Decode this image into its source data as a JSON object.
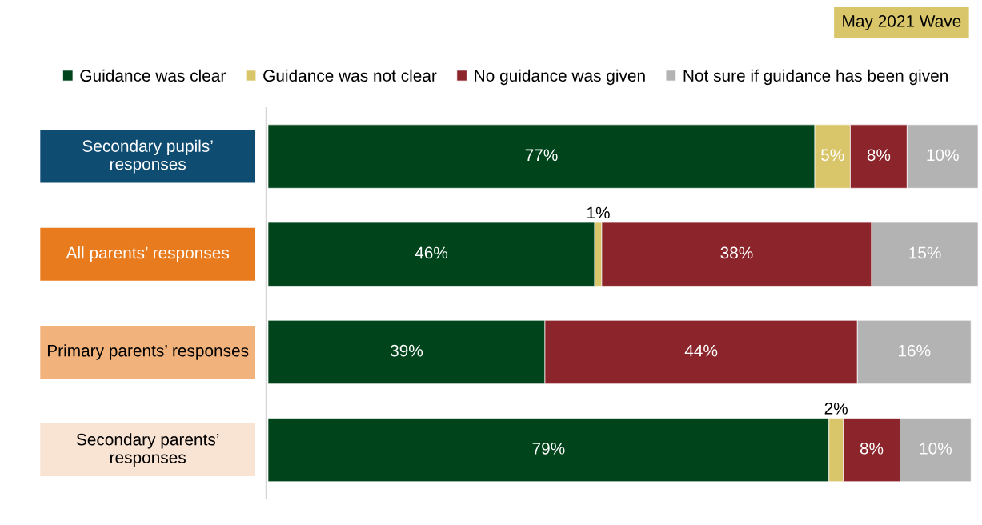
{
  "chart_data": {
    "type": "bar",
    "orientation": "horizontal",
    "stacked": true,
    "subtitle": "May 2021 Wave",
    "categories": [
      "Secondary pupils’ responses",
      "All parents’ responses",
      "Primary parents’ responses",
      "Secondary parents’ responses"
    ],
    "series": [
      {
        "name": "Guidance was clear",
        "color": "#00441b",
        "values": [
          77,
          46,
          39,
          79
        ],
        "value_labels": [
          "77%",
          "46%",
          "39%",
          "79%"
        ]
      },
      {
        "name": "Guidance was not clear",
        "color": "#d9c66b",
        "values": [
          5,
          1,
          null,
          2
        ],
        "value_labels": [
          "5%",
          "1%",
          null,
          "2%"
        ]
      },
      {
        "name": "No guidance was given",
        "color": "#8b252b",
        "values": [
          8,
          38,
          44,
          8
        ],
        "value_labels": [
          "8%",
          "38%",
          "44%",
          "8%"
        ]
      },
      {
        "name": "Not sure if guidance has been given",
        "color": "#b3b3b3",
        "values": [
          10,
          15,
          16,
          10
        ],
        "value_labels": [
          "10%",
          "15%",
          "16%",
          "10%"
        ]
      }
    ],
    "xlim": [
      0,
      100
    ],
    "legend": "top",
    "grid": false
  }
}
